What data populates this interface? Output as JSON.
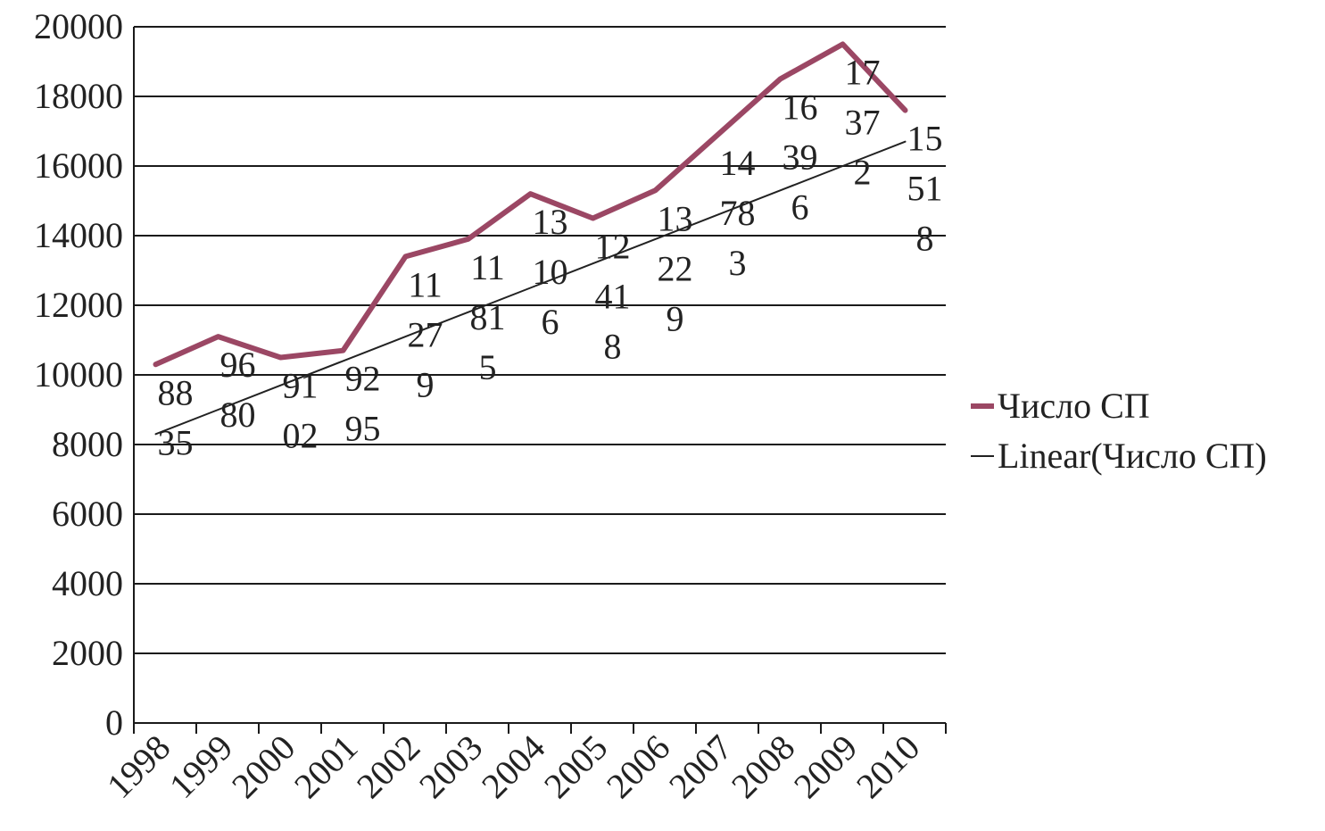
{
  "chart_data": {
    "type": "line",
    "categories": [
      "1998",
      "1999",
      "2000",
      "2001",
      "2002",
      "2003",
      "2004",
      "2005",
      "2006",
      "2007",
      "2008",
      "2009",
      "2010"
    ],
    "series": [
      {
        "name": "Число СП",
        "values": [
          10300,
          11100,
          10500,
          10700,
          13400,
          13900,
          15200,
          14500,
          15300,
          16900,
          18500,
          19500,
          17600
        ],
        "labels": [
          [
            "88",
            "35"
          ],
          [
            "96",
            "80"
          ],
          [
            "91",
            "02"
          ],
          [
            "92",
            "95"
          ],
          [
            "11",
            "27",
            "9"
          ],
          [
            "11",
            "81",
            "5"
          ],
          [
            "13",
            "10",
            "6"
          ],
          [
            "12",
            "41",
            "8"
          ],
          [
            "13",
            "22",
            "9"
          ],
          [
            "14",
            "78",
            "3"
          ],
          [
            "16",
            "39",
            "6"
          ],
          [
            "17",
            "37",
            "2"
          ],
          [
            "15",
            "51",
            "8"
          ]
        ],
        "color": "#9B4764"
      },
      {
        "name": "Linear(Число СП)",
        "values": [
          8300,
          9000,
          9700,
          10400,
          11100,
          11800,
          12500,
          13200,
          13900,
          14600,
          15300,
          16000,
          16700
        ],
        "color": "#222222"
      }
    ],
    "yticks": [
      "0",
      "2000",
      "4000",
      "6000",
      "8000",
      "10000",
      "12000",
      "14000",
      "16000",
      "18000",
      "20000"
    ],
    "ylim": [
      0,
      20000
    ],
    "grid": true,
    "legend": "right"
  }
}
